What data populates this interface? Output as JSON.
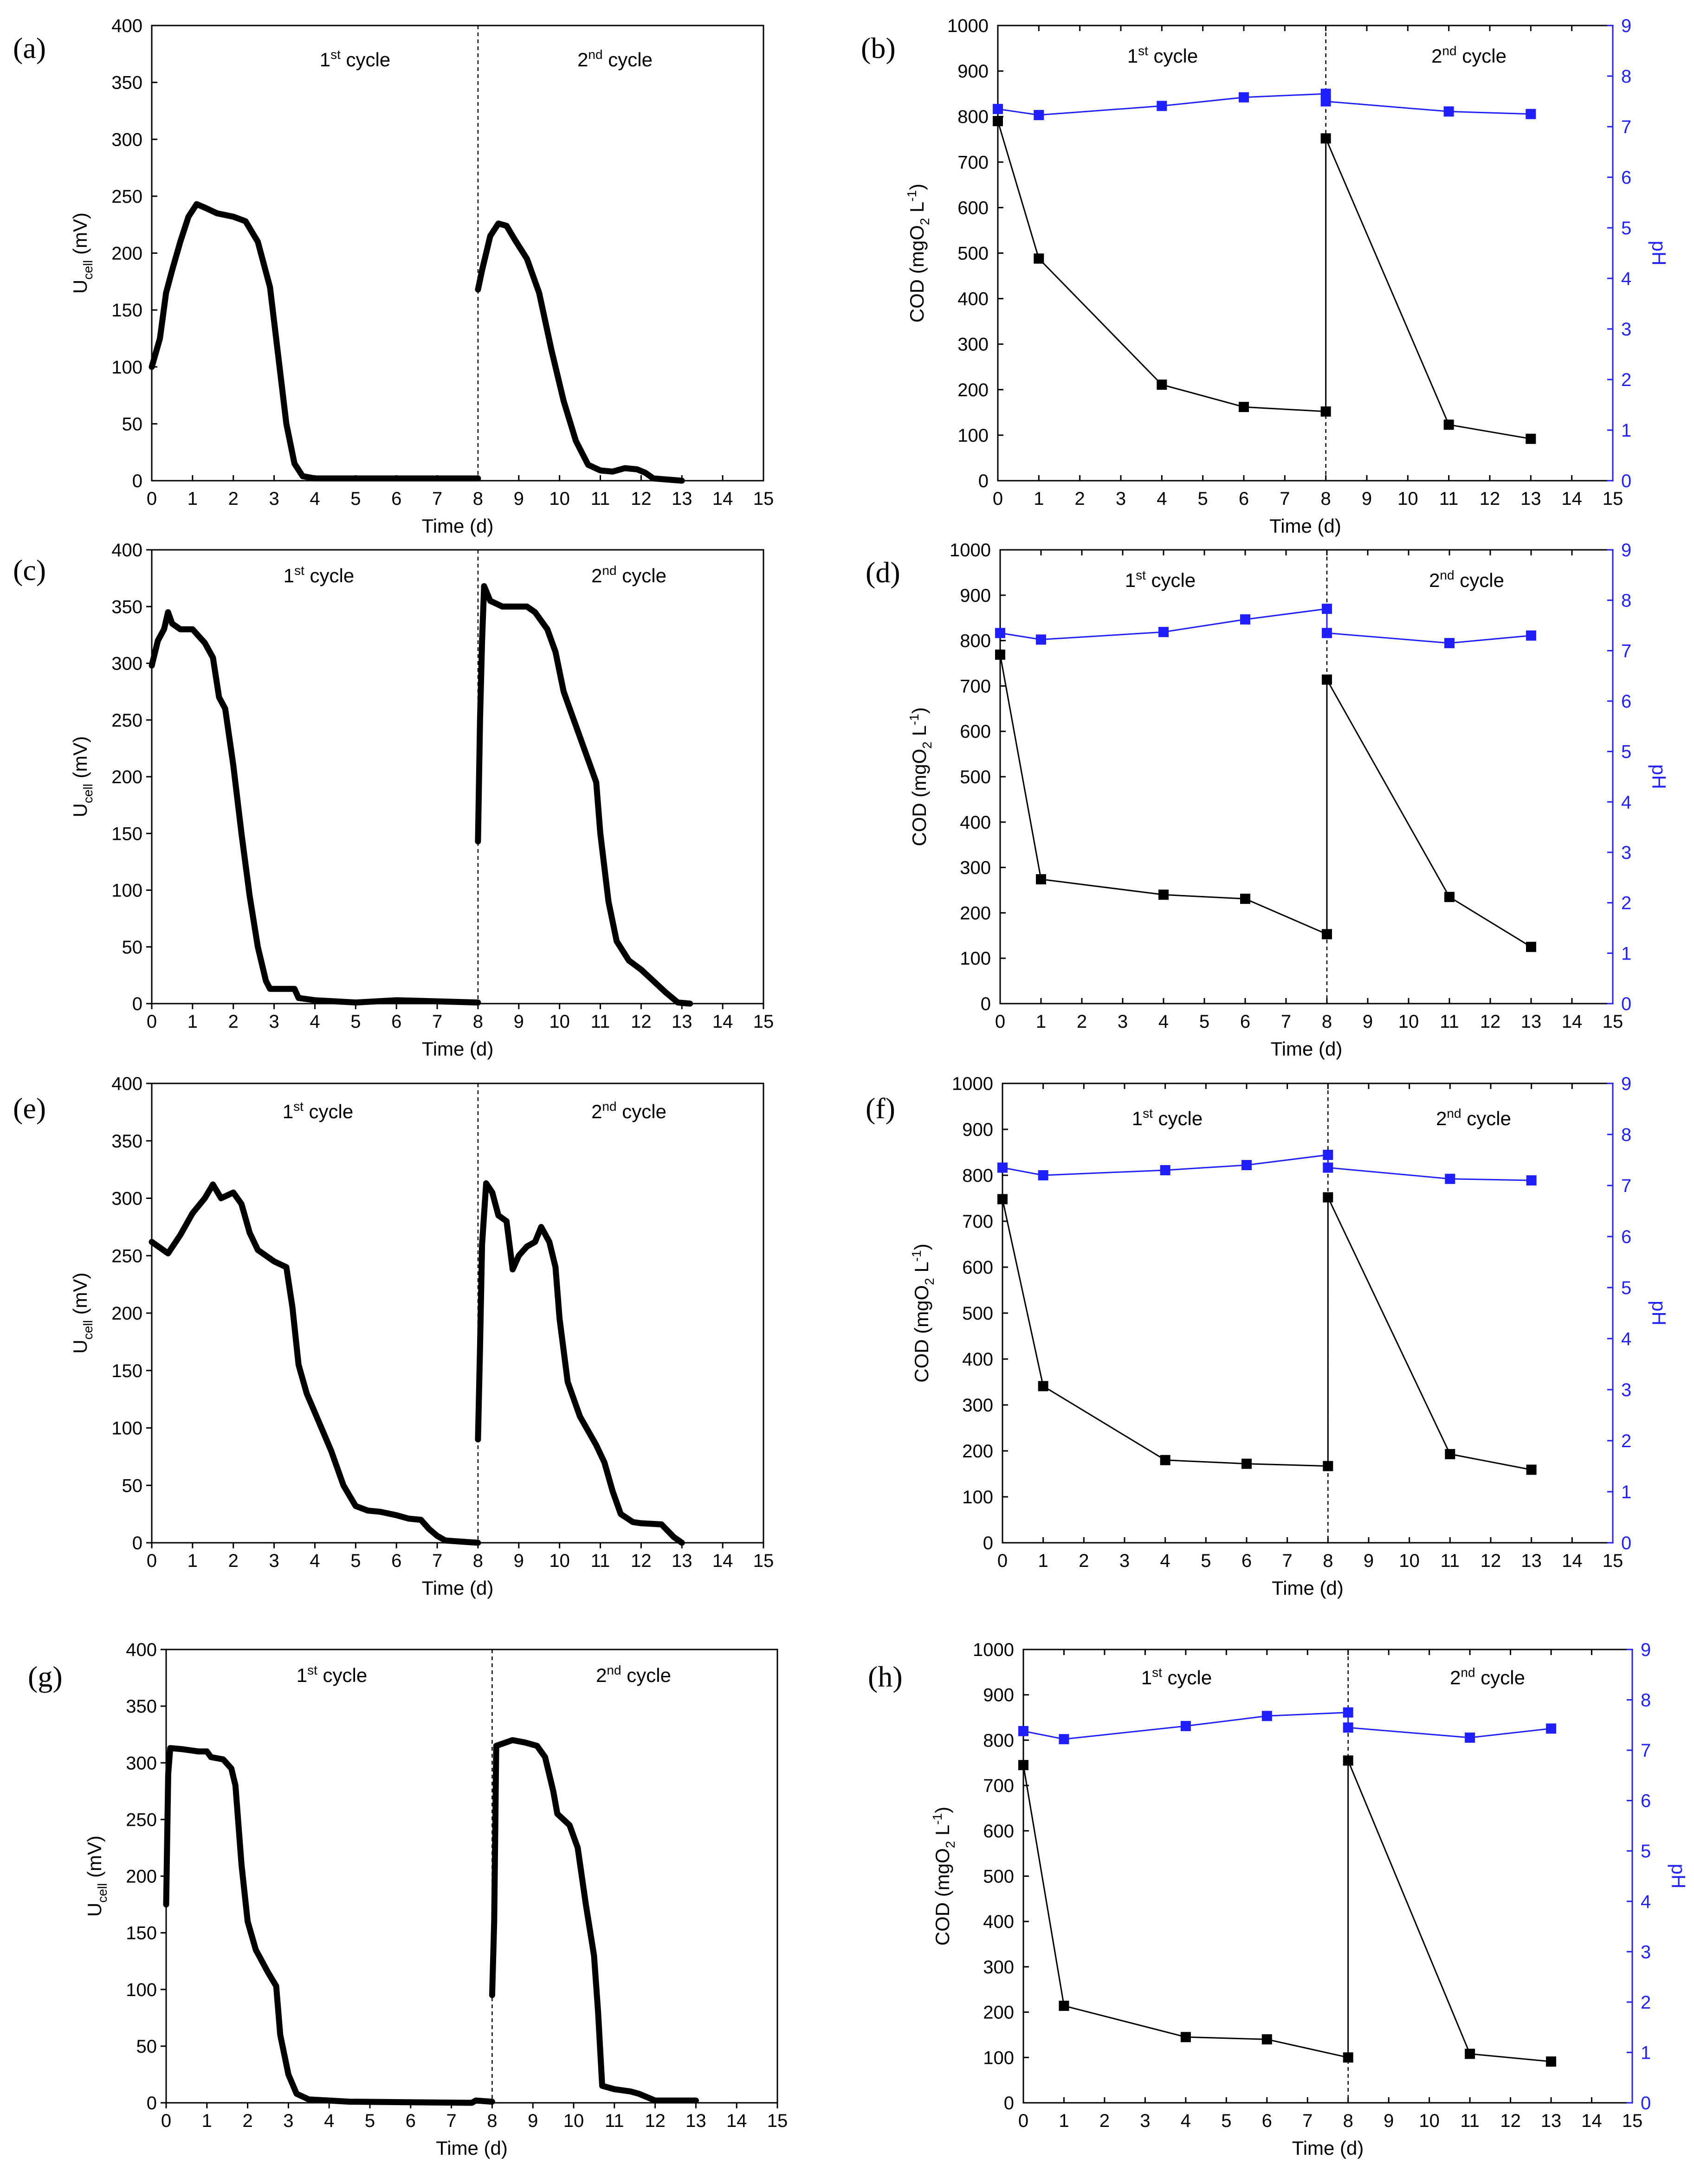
{
  "figure": {
    "cycle_labels": {
      "first_base": "1",
      "first_sup": "st",
      "second_base": "2",
      "second_sup": "nd",
      "word": " cycle"
    },
    "xlabel": "Time (d)",
    "ylabel_u_main": "U",
    "ylabel_u_sub": "cell",
    "ylabel_u_unit": " (mV)",
    "ylabel_cod_main": "COD (mgO",
    "ylabel_cod_sub": "2",
    "ylabel_cod_unit": " L",
    "ylabel_cod_sup": "-1",
    "ylabel_cod_end": ")",
    "ylabel_ph": "pH"
  },
  "colors": {
    "line": "#000000",
    "cod": "#000000",
    "ph": "#1f1fff"
  },
  "chart_data": [
    {
      "panel": "(a)",
      "type": "line",
      "xlabel": "Time (d)",
      "ylabel": "Ucell (mV)",
      "xlim": [
        0,
        15
      ],
      "ylim": [
        0,
        400
      ],
      "divider_x": 8,
      "cycle1": [
        [
          0,
          100
        ],
        [
          0.2,
          125
        ],
        [
          0.35,
          165
        ],
        [
          0.5,
          185
        ],
        [
          0.7,
          210
        ],
        [
          0.9,
          232
        ],
        [
          1.1,
          243
        ],
        [
          1.3,
          240
        ],
        [
          1.6,
          235
        ],
        [
          2.0,
          232
        ],
        [
          2.3,
          228
        ],
        [
          2.6,
          210
        ],
        [
          2.9,
          170
        ],
        [
          3.1,
          110
        ],
        [
          3.3,
          50
        ],
        [
          3.5,
          15
        ],
        [
          3.7,
          4
        ],
        [
          4.0,
          2
        ],
        [
          5,
          2
        ],
        [
          6,
          2
        ],
        [
          7,
          2
        ],
        [
          8,
          2
        ]
      ],
      "cycle2": [
        [
          8.0,
          168
        ],
        [
          8.1,
          185
        ],
        [
          8.3,
          215
        ],
        [
          8.5,
          226
        ],
        [
          8.7,
          224
        ],
        [
          8.9,
          212
        ],
        [
          9.2,
          195
        ],
        [
          9.5,
          165
        ],
        [
          9.8,
          115
        ],
        [
          10.1,
          70
        ],
        [
          10.4,
          35
        ],
        [
          10.7,
          14
        ],
        [
          11.0,
          9
        ],
        [
          11.3,
          8
        ],
        [
          11.6,
          11
        ],
        [
          11.9,
          10
        ],
        [
          12.1,
          7
        ],
        [
          12.3,
          2
        ],
        [
          13.0,
          0
        ]
      ]
    },
    {
      "panel": "(b)",
      "type": "scatter",
      "xlabel": "Time (d)",
      "ylabel": "COD (mgO2 L-1)",
      "y2label": "pH",
      "xlim": [
        0,
        15
      ],
      "ylim": [
        0,
        1000
      ],
      "y2lim": [
        0,
        9
      ],
      "divider_x": 8,
      "cod": {
        "x": [
          0,
          1,
          4,
          6,
          8,
          8,
          11,
          13
        ],
        "y": [
          790,
          488,
          211,
          162,
          152,
          752,
          123,
          92
        ]
      },
      "ph": {
        "x": [
          0,
          1,
          4,
          6,
          8,
          8,
          11,
          13
        ],
        "y": [
          7.35,
          7.23,
          7.41,
          7.58,
          7.65,
          7.5,
          7.3,
          7.25
        ]
      }
    },
    {
      "panel": "(c)",
      "type": "line",
      "xlabel": "Time (d)",
      "ylabel": "Ucell (mV)",
      "xlim": [
        0,
        15
      ],
      "ylim": [
        0,
        400
      ],
      "divider_x": 8,
      "cycle1": [
        [
          0,
          298
        ],
        [
          0.15,
          320
        ],
        [
          0.3,
          330
        ],
        [
          0.4,
          345
        ],
        [
          0.5,
          335
        ],
        [
          0.7,
          330
        ],
        [
          1.0,
          330
        ],
        [
          1.3,
          318
        ],
        [
          1.5,
          305
        ],
        [
          1.65,
          270
        ],
        [
          1.8,
          260
        ],
        [
          2.0,
          210
        ],
        [
          2.2,
          150
        ],
        [
          2.4,
          95
        ],
        [
          2.6,
          50
        ],
        [
          2.8,
          20
        ],
        [
          2.9,
          13
        ],
        [
          3.5,
          13
        ],
        [
          3.6,
          5
        ],
        [
          4.0,
          3
        ],
        [
          5.0,
          1
        ],
        [
          6.0,
          3
        ],
        [
          7.0,
          2
        ],
        [
          8.0,
          1
        ]
      ],
      "cycle2": [
        [
          8.0,
          143
        ],
        [
          8.05,
          250
        ],
        [
          8.1,
          320
        ],
        [
          8.15,
          368
        ],
        [
          8.3,
          355
        ],
        [
          8.6,
          350
        ],
        [
          9.2,
          350
        ],
        [
          9.4,
          345
        ],
        [
          9.7,
          330
        ],
        [
          9.9,
          310
        ],
        [
          10.1,
          275
        ],
        [
          10.2,
          265
        ],
        [
          10.4,
          245
        ],
        [
          10.6,
          225
        ],
        [
          10.8,
          205
        ],
        [
          10.9,
          195
        ],
        [
          11.0,
          150
        ],
        [
          11.2,
          90
        ],
        [
          11.4,
          55
        ],
        [
          11.7,
          38
        ],
        [
          12.0,
          30
        ],
        [
          12.3,
          20
        ],
        [
          12.6,
          10
        ],
        [
          12.9,
          1
        ],
        [
          13.2,
          0
        ]
      ]
    },
    {
      "panel": "(d)",
      "type": "scatter",
      "xlabel": "Time (d)",
      "ylabel": "COD (mgO2 L-1)",
      "y2label": "pH",
      "xlim": [
        0,
        15
      ],
      "ylim": [
        0,
        1000
      ],
      "y2lim": [
        0,
        9
      ],
      "divider_x": 8,
      "cod": {
        "x": [
          0,
          1,
          4,
          6,
          8,
          8,
          11,
          13
        ],
        "y": [
          769,
          274,
          240,
          231,
          153,
          714,
          235,
          125
        ]
      },
      "ph": {
        "x": [
          0,
          1,
          4,
          6,
          8,
          8,
          11,
          13
        ],
        "y": [
          7.35,
          7.22,
          7.37,
          7.62,
          7.83,
          7.35,
          7.15,
          7.3
        ]
      }
    },
    {
      "panel": "(e)",
      "type": "line",
      "xlabel": "Time (d)",
      "ylabel": "Ucell (mV)",
      "xlim": [
        0,
        15
      ],
      "ylim": [
        0,
        400
      ],
      "divider_x": 8,
      "cycle1": [
        [
          0,
          262
        ],
        [
          0.2,
          257
        ],
        [
          0.4,
          252
        ],
        [
          0.7,
          268
        ],
        [
          1.0,
          287
        ],
        [
          1.3,
          300
        ],
        [
          1.5,
          312
        ],
        [
          1.7,
          300
        ],
        [
          2.0,
          305
        ],
        [
          2.2,
          295
        ],
        [
          2.4,
          270
        ],
        [
          2.6,
          255
        ],
        [
          3.0,
          245
        ],
        [
          3.3,
          240
        ],
        [
          3.45,
          205
        ],
        [
          3.6,
          155
        ],
        [
          3.8,
          130
        ],
        [
          4.1,
          105
        ],
        [
          4.4,
          80
        ],
        [
          4.7,
          50
        ],
        [
          5.0,
          32
        ],
        [
          5.3,
          28
        ],
        [
          5.6,
          27
        ],
        [
          6.0,
          24
        ],
        [
          6.3,
          21
        ],
        [
          6.6,
          20
        ],
        [
          6.8,
          12
        ],
        [
          7.0,
          6
        ],
        [
          7.2,
          2
        ],
        [
          8.0,
          0
        ]
      ],
      "cycle2": [
        [
          8.0,
          90
        ],
        [
          8.05,
          170
        ],
        [
          8.1,
          260
        ],
        [
          8.2,
          313
        ],
        [
          8.35,
          305
        ],
        [
          8.5,
          285
        ],
        [
          8.7,
          280
        ],
        [
          8.85,
          238
        ],
        [
          9.0,
          250
        ],
        [
          9.2,
          258
        ],
        [
          9.4,
          262
        ],
        [
          9.55,
          275
        ],
        [
          9.75,
          262
        ],
        [
          9.9,
          240
        ],
        [
          10.0,
          195
        ],
        [
          10.2,
          140
        ],
        [
          10.5,
          110
        ],
        [
          10.9,
          85
        ],
        [
          11.1,
          70
        ],
        [
          11.3,
          45
        ],
        [
          11.5,
          25
        ],
        [
          11.8,
          18
        ],
        [
          12.0,
          17
        ],
        [
          12.5,
          16
        ],
        [
          12.8,
          5
        ],
        [
          13.0,
          0
        ]
      ]
    },
    {
      "panel": "(f)",
      "type": "scatter",
      "xlabel": "Time (d)",
      "ylabel": "COD (mgO2 L-1)",
      "y2label": "pH",
      "xlim": [
        0,
        15
      ],
      "ylim": [
        0,
        1000
      ],
      "y2lim": [
        0,
        9
      ],
      "divider_x": 8,
      "cod": {
        "x": [
          0,
          1,
          4,
          6,
          8,
          8,
          11,
          13
        ],
        "y": [
          748,
          341,
          180,
          172,
          167,
          752,
          193,
          159
        ]
      },
      "ph": {
        "x": [
          0,
          1,
          4,
          6,
          8,
          8,
          11,
          13
        ],
        "y": [
          7.35,
          7.2,
          7.3,
          7.4,
          7.6,
          7.35,
          7.13,
          7.1
        ]
      }
    },
    {
      "panel": "(g)",
      "type": "line",
      "xlabel": "Time (d)",
      "ylabel": "Ucell (mV)",
      "xlim": [
        0,
        15
      ],
      "ylim": [
        0,
        400
      ],
      "divider_x": 8,
      "cycle1": [
        [
          0,
          175
        ],
        [
          0.05,
          290
        ],
        [
          0.1,
          313
        ],
        [
          0.4,
          312
        ],
        [
          0.8,
          310
        ],
        [
          1.0,
          310
        ],
        [
          1.1,
          305
        ],
        [
          1.4,
          303
        ],
        [
          1.6,
          295
        ],
        [
          1.7,
          280
        ],
        [
          1.85,
          210
        ],
        [
          2.0,
          160
        ],
        [
          2.2,
          135
        ],
        [
          2.5,
          115
        ],
        [
          2.7,
          103
        ],
        [
          2.8,
          60
        ],
        [
          3.0,
          25
        ],
        [
          3.2,
          8
        ],
        [
          3.5,
          3
        ],
        [
          4.0,
          2
        ],
        [
          4.5,
          1
        ],
        [
          7.5,
          0
        ],
        [
          7.6,
          2
        ],
        [
          8.0,
          1
        ]
      ],
      "cycle2": [
        [
          8.0,
          95
        ],
        [
          8.05,
          160
        ],
        [
          8.1,
          315
        ],
        [
          8.5,
          320
        ],
        [
          8.8,
          318
        ],
        [
          9.1,
          315
        ],
        [
          9.3,
          305
        ],
        [
          9.5,
          275
        ],
        [
          9.6,
          255
        ],
        [
          9.9,
          245
        ],
        [
          10.1,
          225
        ],
        [
          10.3,
          175
        ],
        [
          10.5,
          130
        ],
        [
          10.6,
          80
        ],
        [
          10.7,
          15
        ],
        [
          11.0,
          12
        ],
        [
          11.4,
          10
        ],
        [
          11.6,
          8
        ],
        [
          12.0,
          2
        ],
        [
          13.0,
          2
        ]
      ]
    },
    {
      "panel": "(h)",
      "type": "scatter",
      "xlabel": "Time (d)",
      "ylabel": "COD (mgO2 L-1)",
      "y2label": "pH",
      "xlim": [
        0,
        15
      ],
      "ylim": [
        0,
        1000
      ],
      "y2lim": [
        0,
        9
      ],
      "divider_x": 8,
      "cod": {
        "x": [
          0,
          1,
          4,
          6,
          8,
          8,
          11,
          13
        ],
        "y": [
          745,
          214,
          145,
          140,
          100,
          755,
          108,
          91
        ]
      },
      "ph": {
        "x": [
          0,
          1,
          4,
          6,
          8,
          8,
          11,
          13
        ],
        "y": [
          7.38,
          7.22,
          7.48,
          7.68,
          7.75,
          7.45,
          7.25,
          7.43
        ]
      }
    }
  ]
}
